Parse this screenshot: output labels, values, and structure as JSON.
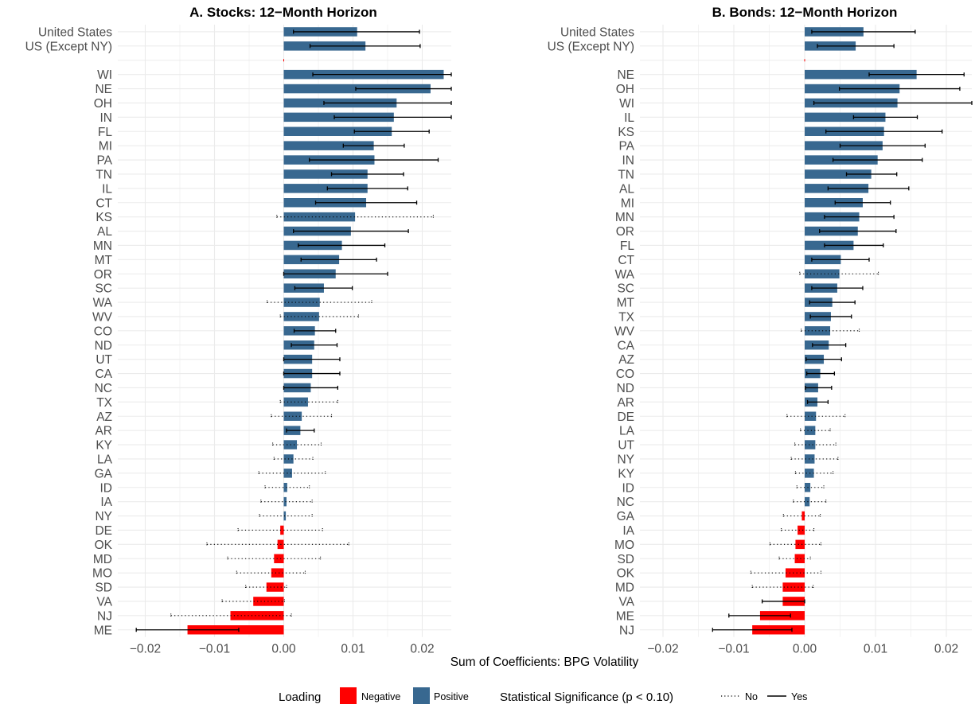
{
  "figure": {
    "xlabel": "Sum of Coefficients: BPG Volatility",
    "legend": {
      "loading_title": "Loading",
      "negative_label": "Negative",
      "positive_label": "Positive",
      "sig_title": "Statistical Significance (p < 0.10)",
      "no_label": "No",
      "yes_label": "Yes"
    },
    "colors": {
      "positive": "#386890",
      "negative": "#ff0000",
      "grid": "#ebebeb",
      "errorbar": "#000000"
    }
  },
  "chart_data": [
    {
      "type": "bar",
      "orientation": "horizontal",
      "title": "A. Stocks: 12−Month Horizon",
      "xlim": [
        -0.024,
        0.024
      ],
      "xticks": [
        -0.02,
        -0.01,
        0.0,
        0.01,
        0.02
      ],
      "xtick_labels": [
        "−0.02",
        "−0.01",
        "0.00",
        "0.01",
        "0.02"
      ],
      "rows": [
        {
          "label": "United States",
          "value": 0.0106,
          "lo": 0.0014,
          "hi": 0.0196,
          "sig": true
        },
        {
          "label": "US (Except NY)",
          "value": 0.0118,
          "lo": 0.0038,
          "hi": 0.0197,
          "sig": true
        },
        {
          "label": "",
          "value": 0,
          "lo": null,
          "hi": null,
          "sig": null
        },
        {
          "label": "WI",
          "value": 0.0231,
          "lo": 0.0042,
          "hi": 0.0265,
          "sig": true
        },
        {
          "label": "NE",
          "value": 0.0212,
          "lo": 0.0104,
          "hi": 0.0265,
          "sig": true
        },
        {
          "label": "OH",
          "value": 0.0163,
          "lo": 0.0058,
          "hi": 0.0265,
          "sig": true
        },
        {
          "label": "IN",
          "value": 0.0159,
          "lo": 0.0073,
          "hi": 0.0265,
          "sig": true
        },
        {
          "label": "FL",
          "value": 0.0156,
          "lo": 0.0102,
          "hi": 0.021,
          "sig": true
        },
        {
          "label": "MI",
          "value": 0.013,
          "lo": 0.0086,
          "hi": 0.0174,
          "sig": true
        },
        {
          "label": "PA",
          "value": 0.0131,
          "lo": 0.0037,
          "hi": 0.0223,
          "sig": true
        },
        {
          "label": "TN",
          "value": 0.0121,
          "lo": 0.0069,
          "hi": 0.0173,
          "sig": true
        },
        {
          "label": "IL",
          "value": 0.0121,
          "lo": 0.0063,
          "hi": 0.0179,
          "sig": true
        },
        {
          "label": "CT",
          "value": 0.0119,
          "lo": 0.0046,
          "hi": 0.0192,
          "sig": true
        },
        {
          "label": "KS",
          "value": 0.0103,
          "lo": -0.001,
          "hi": 0.0216,
          "sig": false
        },
        {
          "label": "AL",
          "value": 0.0097,
          "lo": 0.0014,
          "hi": 0.018,
          "sig": true
        },
        {
          "label": "MN",
          "value": 0.0084,
          "lo": 0.0021,
          "hi": 0.0146,
          "sig": true
        },
        {
          "label": "MT",
          "value": 0.008,
          "lo": 0.0025,
          "hi": 0.0134,
          "sig": true
        },
        {
          "label": "OR",
          "value": 0.0075,
          "lo": 0.0,
          "hi": 0.015,
          "sig": true
        },
        {
          "label": "SC",
          "value": 0.0058,
          "lo": 0.0016,
          "hi": 0.0099,
          "sig": true
        },
        {
          "label": "WA",
          "value": 0.0052,
          "lo": -0.0024,
          "hi": 0.0127,
          "sig": false
        },
        {
          "label": "WV",
          "value": 0.0051,
          "lo": -0.0005,
          "hi": 0.0108,
          "sig": false
        },
        {
          "label": "CO",
          "value": 0.0045,
          "lo": 0.0015,
          "hi": 0.0075,
          "sig": true
        },
        {
          "label": "ND",
          "value": 0.0044,
          "lo": 0.0011,
          "hi": 0.0077,
          "sig": true
        },
        {
          "label": "UT",
          "value": 0.0041,
          "lo": 0.0,
          "hi": 0.0081,
          "sig": true
        },
        {
          "label": "CA",
          "value": 0.0041,
          "lo": 0.0,
          "hi": 0.0081,
          "sig": true
        },
        {
          "label": "NC",
          "value": 0.0039,
          "lo": 0.0,
          "hi": 0.0078,
          "sig": true
        },
        {
          "label": "TX",
          "value": 0.0035,
          "lo": -0.0005,
          "hi": 0.0078,
          "sig": false
        },
        {
          "label": "AZ",
          "value": 0.0026,
          "lo": -0.0018,
          "hi": 0.0069,
          "sig": false
        },
        {
          "label": "AR",
          "value": 0.0024,
          "lo": 0.0004,
          "hi": 0.0044,
          "sig": true
        },
        {
          "label": "KY",
          "value": 0.0019,
          "lo": -0.0016,
          "hi": 0.0054,
          "sig": false
        },
        {
          "label": "LA",
          "value": 0.0014,
          "lo": -0.0014,
          "hi": 0.0042,
          "sig": false
        },
        {
          "label": "GA",
          "value": 0.0012,
          "lo": -0.0036,
          "hi": 0.006,
          "sig": false
        },
        {
          "label": "ID",
          "value": 0.0005,
          "lo": -0.0027,
          "hi": 0.0037,
          "sig": false
        },
        {
          "label": "IA",
          "value": 0.0004,
          "lo": -0.0033,
          "hi": 0.0041,
          "sig": false
        },
        {
          "label": "NY",
          "value": 0.0003,
          "lo": -0.0035,
          "hi": 0.0041,
          "sig": false
        },
        {
          "label": "DE",
          "value": -0.0005,
          "lo": -0.0066,
          "hi": 0.0056,
          "sig": false
        },
        {
          "label": "OK",
          "value": -0.0009,
          "lo": -0.0111,
          "hi": 0.0094,
          "sig": false
        },
        {
          "label": "MD",
          "value": -0.0014,
          "lo": -0.0081,
          "hi": 0.0053,
          "sig": false
        },
        {
          "label": "MO",
          "value": -0.0018,
          "lo": -0.0068,
          "hi": 0.0031,
          "sig": false
        },
        {
          "label": "SD",
          "value": -0.0025,
          "lo": -0.0055,
          "hi": 0.0004,
          "sig": false
        },
        {
          "label": "VA",
          "value": -0.0044,
          "lo": -0.0089,
          "hi": 0.0001,
          "sig": false
        },
        {
          "label": "NJ",
          "value": -0.0077,
          "lo": -0.0163,
          "hi": 0.0011,
          "sig": false
        },
        {
          "label": "ME",
          "value": -0.0139,
          "lo": -0.0213,
          "hi": -0.0065,
          "sig": true
        }
      ]
    },
    {
      "type": "bar",
      "orientation": "horizontal",
      "title": "B. Bonds: 12−Month Horizon",
      "xlim": [
        -0.024,
        0.024
      ],
      "xticks": [
        -0.02,
        -0.01,
        0.0,
        0.01,
        0.02
      ],
      "xtick_labels": [
        "−0.02",
        "−0.01",
        "0.00",
        "0.01",
        "0.02"
      ],
      "rows": [
        {
          "label": "United States",
          "value": 0.0083,
          "lo": 0.001,
          "hi": 0.0156,
          "sig": true
        },
        {
          "label": "US (Except NY)",
          "value": 0.0072,
          "lo": 0.0018,
          "hi": 0.0126,
          "sig": true
        },
        {
          "label": "",
          "value": 0,
          "lo": null,
          "hi": null,
          "sig": null
        },
        {
          "label": "NE",
          "value": 0.0158,
          "lo": 0.0091,
          "hi": 0.0225,
          "sig": true
        },
        {
          "label": "OH",
          "value": 0.0134,
          "lo": 0.0049,
          "hi": 0.0219,
          "sig": true
        },
        {
          "label": "WI",
          "value": 0.0131,
          "lo": 0.0013,
          "hi": 0.024,
          "sig": true
        },
        {
          "label": "IL",
          "value": 0.0114,
          "lo": 0.0069,
          "hi": 0.0159,
          "sig": true
        },
        {
          "label": "KS",
          "value": 0.0112,
          "lo": 0.003,
          "hi": 0.0194,
          "sig": true
        },
        {
          "label": "PA",
          "value": 0.011,
          "lo": 0.005,
          "hi": 0.017,
          "sig": true
        },
        {
          "label": "IN",
          "value": 0.0103,
          "lo": 0.004,
          "hi": 0.0166,
          "sig": true
        },
        {
          "label": "TN",
          "value": 0.0094,
          "lo": 0.0059,
          "hi": 0.013,
          "sig": true
        },
        {
          "label": "AL",
          "value": 0.009,
          "lo": 0.0033,
          "hi": 0.0147,
          "sig": true
        },
        {
          "label": "MI",
          "value": 0.0082,
          "lo": 0.0043,
          "hi": 0.0121,
          "sig": true
        },
        {
          "label": "MN",
          "value": 0.0077,
          "lo": 0.0028,
          "hi": 0.0126,
          "sig": true
        },
        {
          "label": "OR",
          "value": 0.0075,
          "lo": 0.0021,
          "hi": 0.0129,
          "sig": true
        },
        {
          "label": "FL",
          "value": 0.0069,
          "lo": 0.0028,
          "hi": 0.0111,
          "sig": true
        },
        {
          "label": "CT",
          "value": 0.0051,
          "lo": 0.001,
          "hi": 0.0091,
          "sig": true
        },
        {
          "label": "WA",
          "value": 0.0049,
          "lo": -0.0007,
          "hi": 0.0104,
          "sig": false
        },
        {
          "label": "SC",
          "value": 0.0046,
          "lo": 0.001,
          "hi": 0.0082,
          "sig": true
        },
        {
          "label": "MT",
          "value": 0.0039,
          "lo": 0.0007,
          "hi": 0.0071,
          "sig": true
        },
        {
          "label": "TX",
          "value": 0.0037,
          "lo": 0.0008,
          "hi": 0.0066,
          "sig": true
        },
        {
          "label": "WV",
          "value": 0.0036,
          "lo": -0.0005,
          "hi": 0.0077,
          "sig": false
        },
        {
          "label": "CA",
          "value": 0.0034,
          "lo": 0.0011,
          "hi": 0.0058,
          "sig": true
        },
        {
          "label": "AZ",
          "value": 0.0027,
          "lo": 0.0002,
          "hi": 0.0052,
          "sig": true
        },
        {
          "label": "CO",
          "value": 0.0022,
          "lo": 0.0003,
          "hi": 0.0042,
          "sig": true
        },
        {
          "label": "ND",
          "value": 0.0019,
          "lo": 0.0001,
          "hi": 0.0038,
          "sig": true
        },
        {
          "label": "AR",
          "value": 0.0018,
          "lo": 0.0004,
          "hi": 0.0033,
          "sig": true
        },
        {
          "label": "DE",
          "value": 0.0016,
          "lo": -0.0025,
          "hi": 0.0057,
          "sig": false
        },
        {
          "label": "LA",
          "value": 0.0015,
          "lo": -0.0006,
          "hi": 0.0036,
          "sig": false
        },
        {
          "label": "UT",
          "value": 0.0015,
          "lo": -0.0014,
          "hi": 0.0044,
          "sig": false
        },
        {
          "label": "NY",
          "value": 0.0014,
          "lo": -0.0019,
          "hi": 0.0047,
          "sig": false
        },
        {
          "label": "KY",
          "value": 0.0013,
          "lo": -0.0013,
          "hi": 0.004,
          "sig": false
        },
        {
          "label": "ID",
          "value": 0.0008,
          "lo": -0.0011,
          "hi": 0.0027,
          "sig": false
        },
        {
          "label": "NC",
          "value": 0.0007,
          "lo": -0.0016,
          "hi": 0.003,
          "sig": false
        },
        {
          "label": "GA",
          "value": -0.0004,
          "lo": -0.003,
          "hi": 0.0022,
          "sig": false
        },
        {
          "label": "IA",
          "value": -0.001,
          "lo": -0.0033,
          "hi": 0.0013,
          "sig": false
        },
        {
          "label": "MO",
          "value": -0.0013,
          "lo": -0.0049,
          "hi": 0.0023,
          "sig": false
        },
        {
          "label": "SD",
          "value": -0.0014,
          "lo": -0.0036,
          "hi": 0.0008,
          "sig": false
        },
        {
          "label": "OK",
          "value": -0.0027,
          "lo": -0.0076,
          "hi": 0.0023,
          "sig": false
        },
        {
          "label": "MD",
          "value": -0.0031,
          "lo": -0.0074,
          "hi": 0.0012,
          "sig": false
        },
        {
          "label": "VA",
          "value": -0.0031,
          "lo": -0.006,
          "hi": 0.0,
          "sig": true
        },
        {
          "label": "ME",
          "value": -0.0063,
          "lo": -0.0107,
          "hi": -0.002,
          "sig": true
        },
        {
          "label": "NJ",
          "value": -0.0074,
          "lo": -0.013,
          "hi": -0.0018,
          "sig": true
        }
      ]
    }
  ]
}
